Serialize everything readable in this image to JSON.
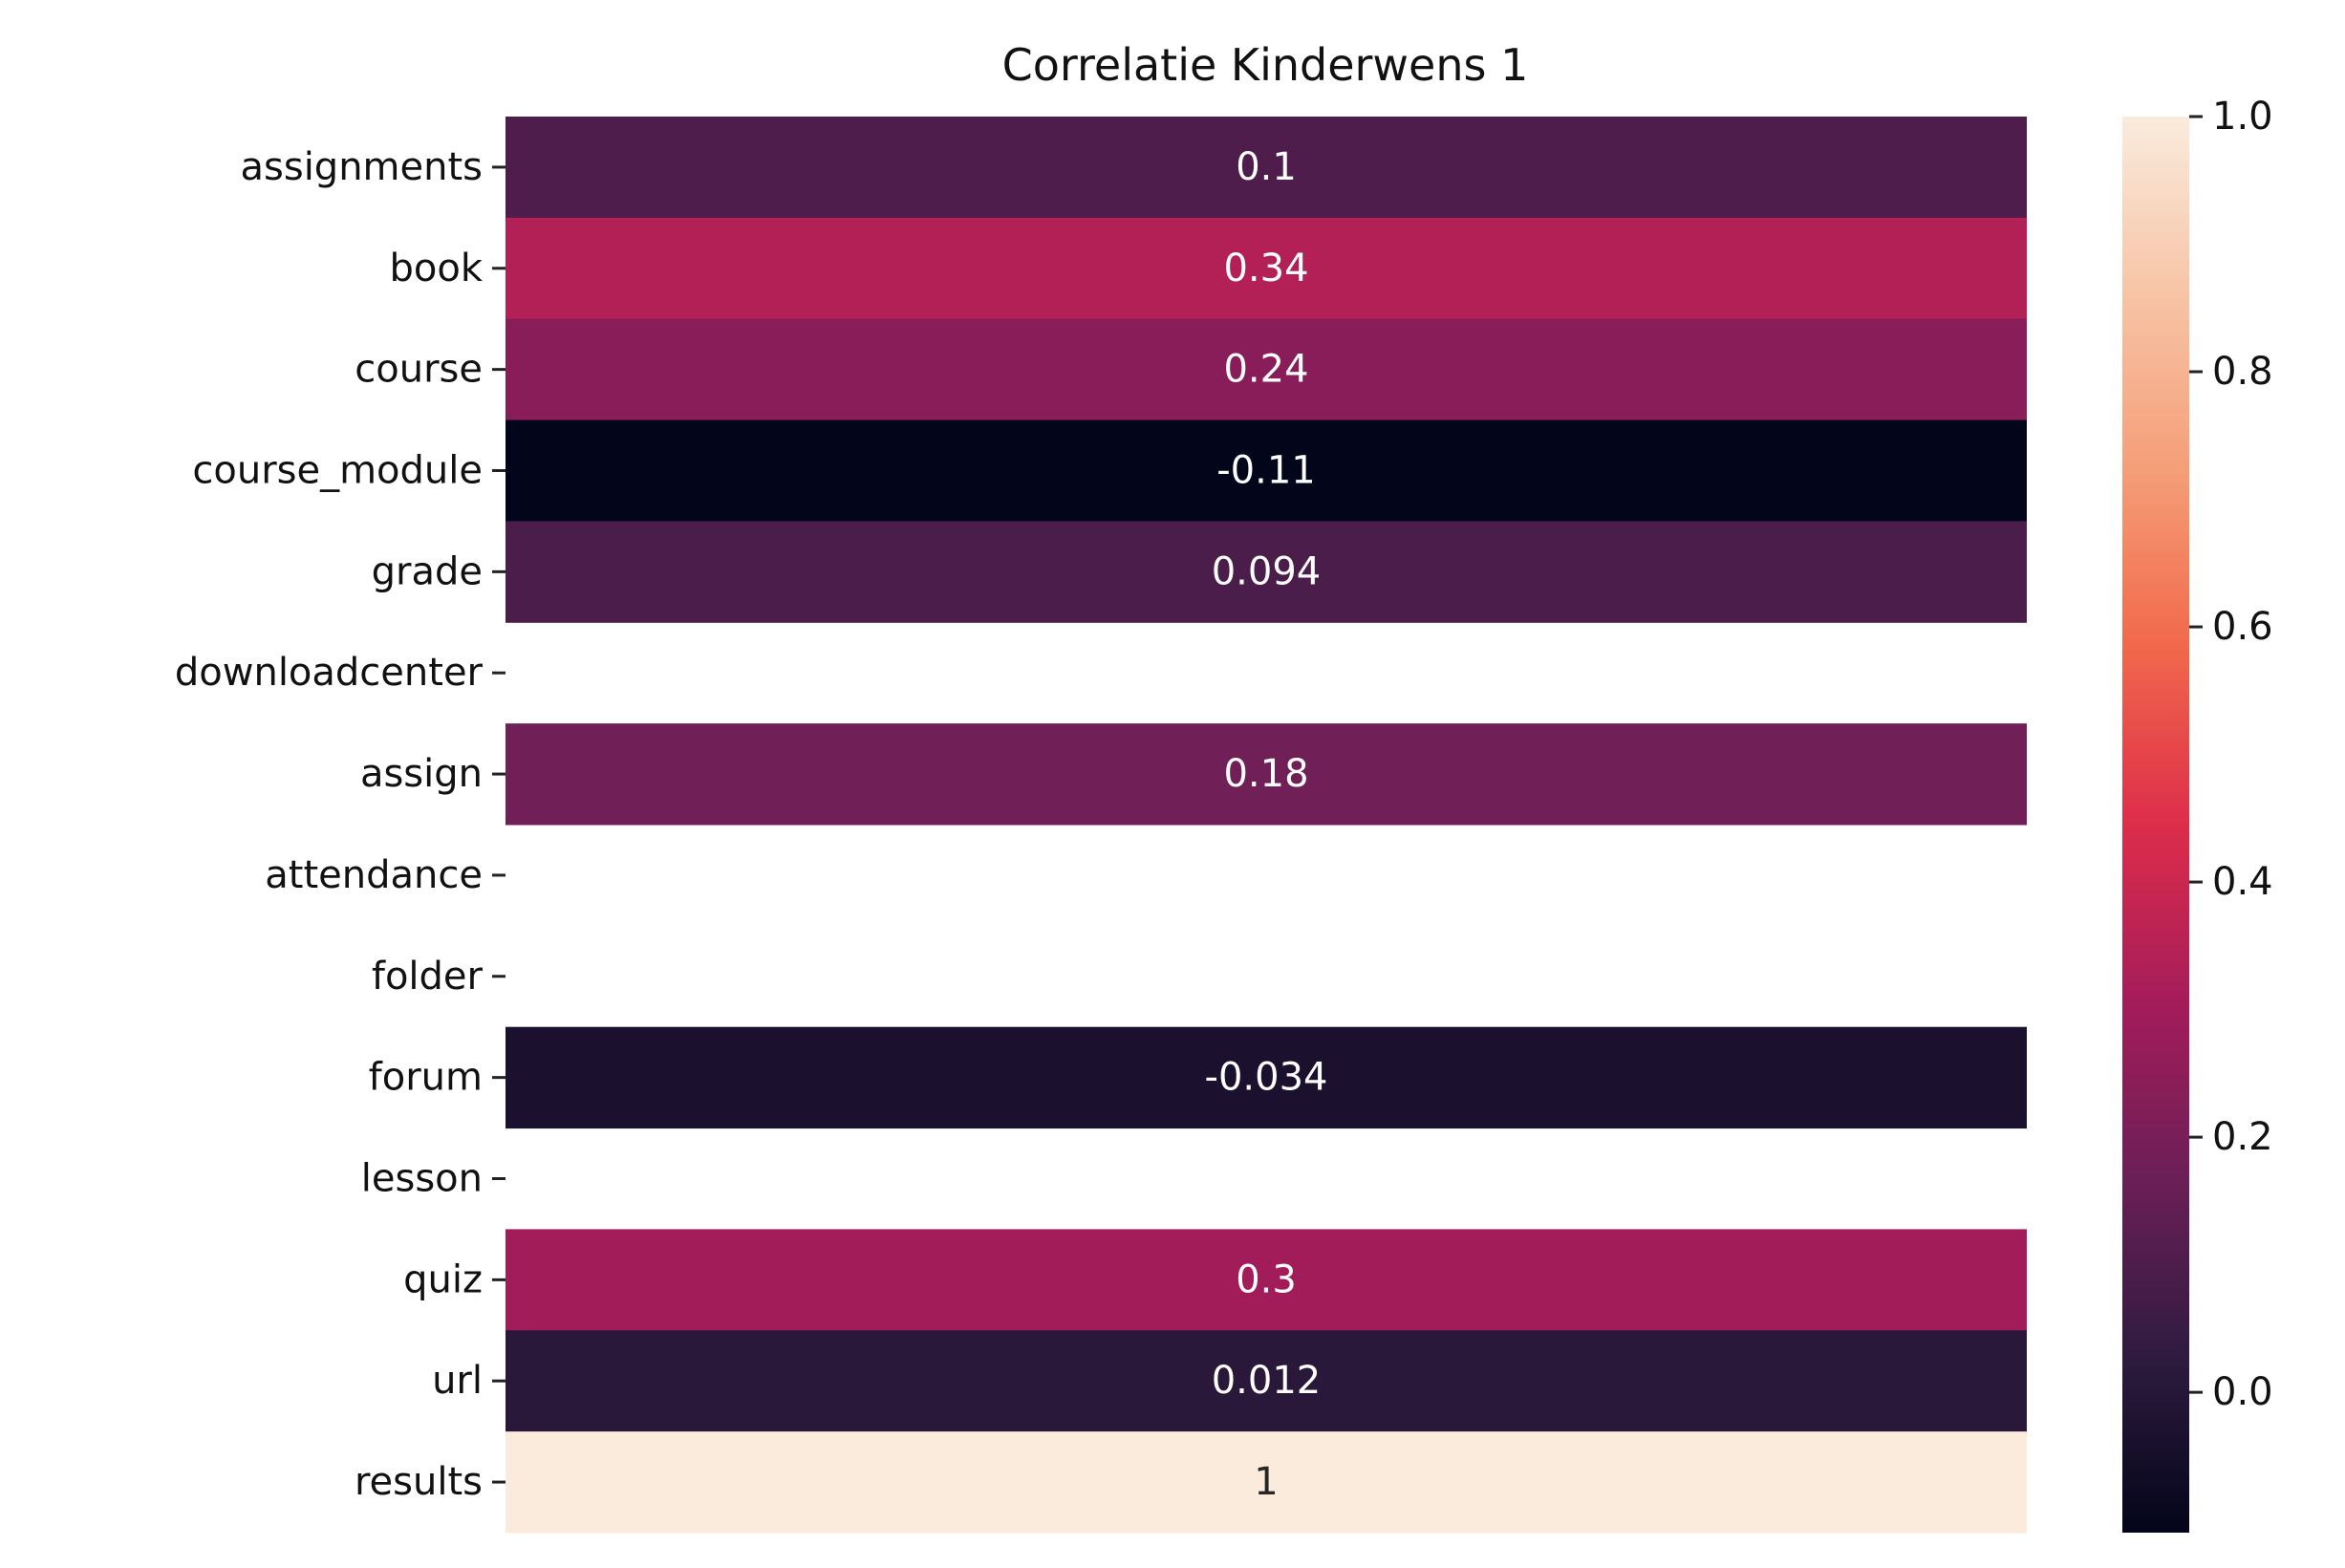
{
  "chart_data": {
    "type": "heatmap",
    "title": "Correlatie Kinderwens 1",
    "xlabel": "",
    "ylabel": "",
    "rows": [
      "assignments",
      "book",
      "course",
      "course_module",
      "grade",
      "downloadcenter",
      "assign",
      "attendance",
      "folder",
      "forum",
      "lesson",
      "quiz",
      "url",
      "results"
    ],
    "values": [
      0.1,
      0.34,
      0.24,
      -0.11,
      0.094,
      null,
      0.18,
      null,
      null,
      -0.034,
      null,
      0.3,
      0.012,
      1
    ],
    "labels": [
      "0.1",
      "0.34",
      "0.24",
      "-0.11",
      "0.094",
      "",
      "0.18",
      "",
      "",
      "-0.034",
      "",
      "0.3",
      "0.012",
      "1"
    ],
    "colorbar": {
      "range": [
        -0.11,
        1.0
      ],
      "ticks": [
        0.0,
        0.2,
        0.4,
        0.6,
        0.8,
        1.0
      ],
      "tick_labels": [
        "0.0",
        "0.2",
        "0.4",
        "0.6",
        "0.8",
        "1.0"
      ],
      "colormap": "rocket",
      "stops": [
        "#03051a",
        "#2f1b3f",
        "#6b1f57",
        "#a51c5a",
        "#dd2d4a",
        "#f1684b",
        "#f59e78",
        "#f7c4a6",
        "#faebdd"
      ]
    }
  }
}
